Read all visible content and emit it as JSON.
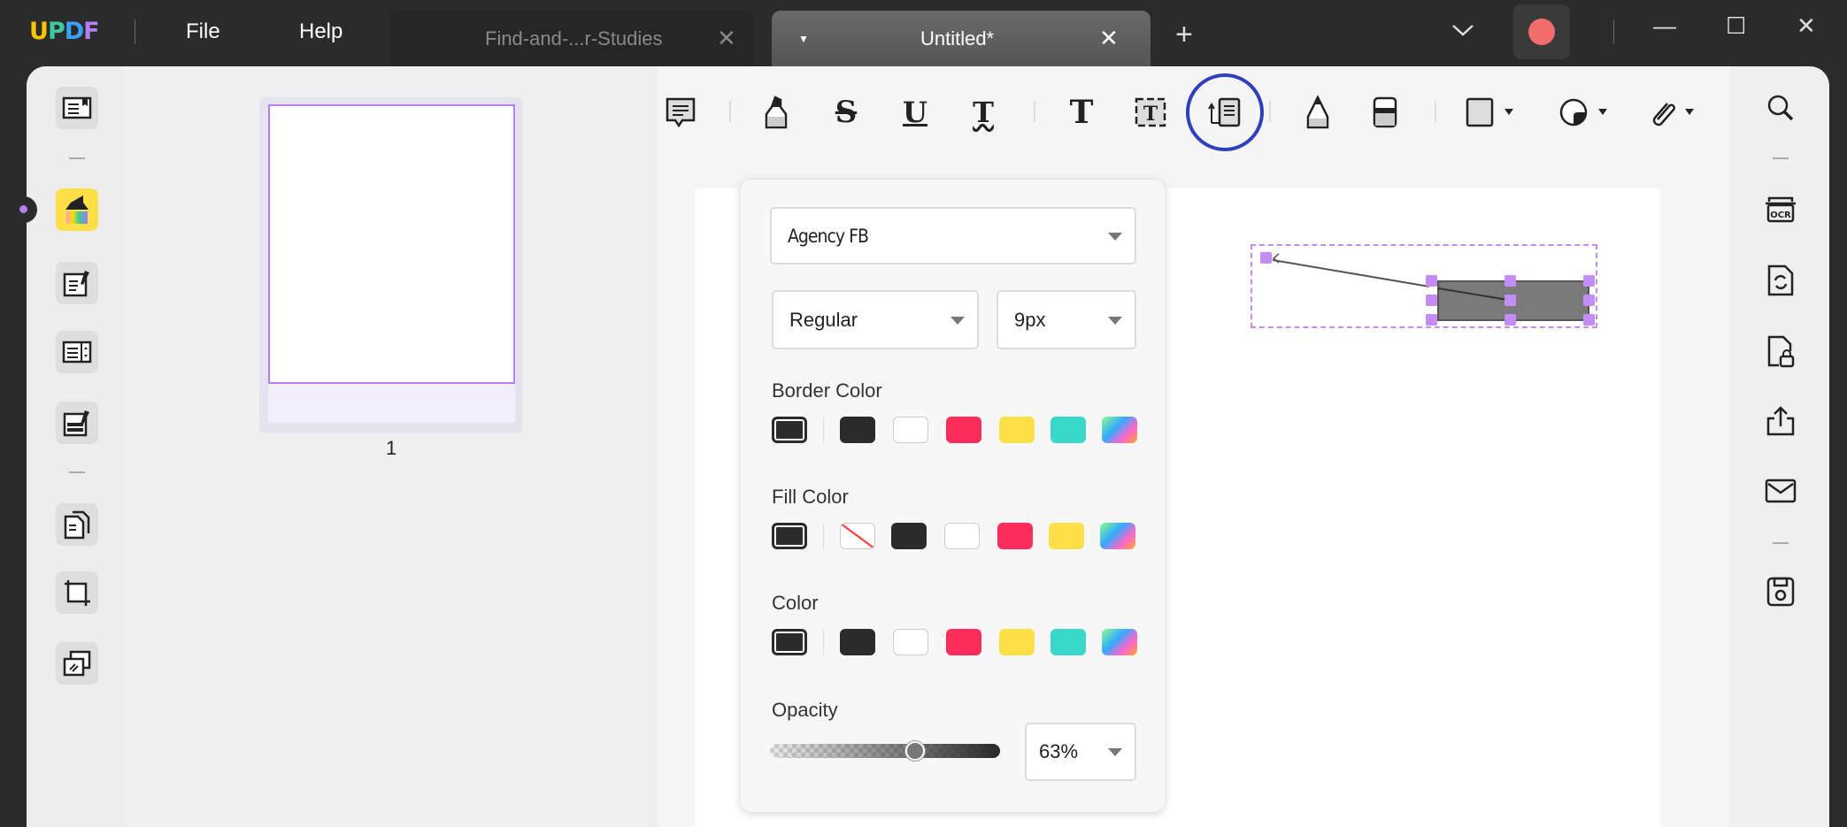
{
  "app": {
    "logo": "UPDF",
    "menu": [
      "File",
      "Help"
    ]
  },
  "tabs": [
    {
      "label": "Find-and-...r-Studies",
      "active": false
    },
    {
      "label": "Untitled*",
      "active": true
    }
  ],
  "tab_add": "+",
  "window": {
    "dropdown_icon": "chevron-down-icon",
    "minimize": "—",
    "maximize": "☐",
    "close": "✕"
  },
  "left_sidebar": {
    "items": [
      "reader-icon",
      "comment-icon",
      "edit-pdf-icon",
      "form-icon",
      "redact-icon",
      "organize-pages-icon",
      "crop-icon",
      "page-tools-icon"
    ],
    "active": "comment-icon"
  },
  "thumbnail": {
    "page_number": "1"
  },
  "toolbar": {
    "items": [
      "comment-note",
      "highlight",
      "strikethrough",
      "underline",
      "squiggly",
      "text",
      "text-box",
      "text-callout",
      "pencil",
      "eraser",
      "shape",
      "sticker",
      "attachment"
    ],
    "active": "text-callout"
  },
  "popup": {
    "font": "Agency FB",
    "style": "Regular",
    "size": "9px",
    "border_color_label": "Border Color",
    "fill_color_label": "Fill Color",
    "color_label": "Color",
    "opacity_label": "Opacity",
    "opacity": "63%",
    "opacity_value": 0.63,
    "border_colors": [
      "#2b2b2b",
      "#ffffff",
      "#fd2c5a",
      "#fde047",
      "#3ad8c8",
      "rainbow"
    ],
    "fill_colors": [
      "none",
      "#2b2b2b",
      "#ffffff",
      "#fd2c5a",
      "#fde047",
      "rainbow"
    ],
    "colors": [
      "#2b2b2b",
      "#ffffff",
      "#fd2c5a",
      "#fde047",
      "#3ad8c8",
      "rainbow"
    ],
    "selected_color": "#2b2b2b"
  },
  "right_sidebar": {
    "items": [
      "search-icon",
      "ocr-icon",
      "convert-icon",
      "protect-icon",
      "share-icon",
      "email-icon",
      "save-icon"
    ]
  },
  "accent": "#b57ef5"
}
